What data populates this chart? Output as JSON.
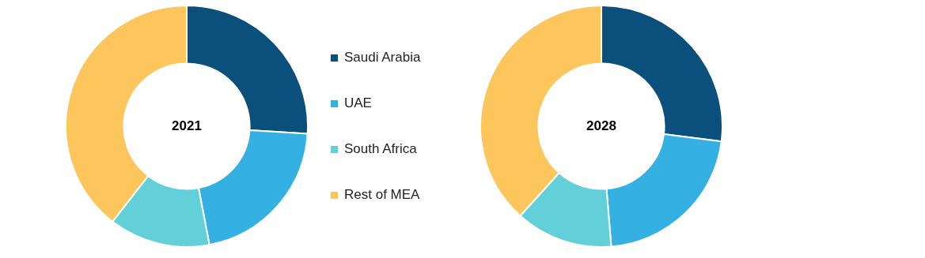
{
  "chart_data": [
    {
      "type": "donut",
      "title": "2021",
      "categories": [
        "Saudi Arabia",
        "UAE",
        "South Africa",
        "Rest of MEA"
      ],
      "values": [
        26,
        21,
        13.5,
        39.5
      ],
      "colors": [
        "#0b4f7c",
        "#35b0e2",
        "#62cfd9",
        "#fdc65c"
      ],
      "legend": "right"
    },
    {
      "type": "donut",
      "title": "2028",
      "categories": [
        null,
        null,
        null,
        null
      ],
      "values": [
        27,
        21.7,
        13,
        38.3
      ],
      "colors": [
        "#0b4f7c",
        "#35b0e2",
        "#62cfd9",
        "#fdc65c"
      ]
    }
  ]
}
